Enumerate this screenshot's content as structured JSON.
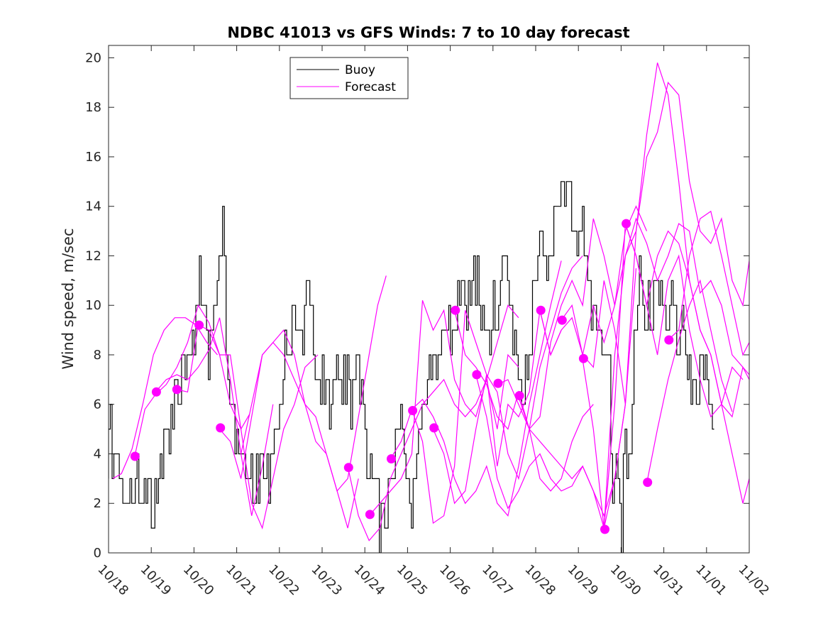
{
  "chart_data": {
    "type": "line",
    "title": "NDBC 41013 vs GFS Winds: 7 to 10 day forecast",
    "xlabel": "",
    "ylabel": "Wind speed, m/sec",
    "xlim": [
      0,
      15
    ],
    "ylim": [
      0,
      20.5
    ],
    "x_ticks": [
      0,
      1,
      2,
      3,
      4,
      5,
      6,
      7,
      8,
      9,
      10,
      11,
      12,
      13,
      14,
      15
    ],
    "x_tick_labels": [
      "10/18",
      "10/19",
      "10/20",
      "10/21",
      "10/22",
      "10/23",
      "10/24",
      "10/25",
      "10/26",
      "10/27",
      "10/28",
      "10/29",
      "10/30",
      "10/31",
      "11/01",
      "11/02"
    ],
    "y_ticks": [
      0,
      2,
      4,
      6,
      8,
      10,
      12,
      14,
      16,
      18,
      20
    ],
    "y_tick_labels": [
      "0",
      "2",
      "4",
      "6",
      "8",
      "10",
      "12",
      "14",
      "16",
      "18",
      "20"
    ],
    "legend": {
      "placement": "top-center",
      "entries": [
        {
          "label": "Buoy",
          "color": "#000000"
        },
        {
          "label": "Forecast",
          "color": "#ff00ff"
        }
      ]
    },
    "colors": {
      "buoy": "#000000",
      "forecast": "#ff00ff"
    },
    "buoy_anchors": [
      [
        0.0,
        3
      ],
      [
        0.05,
        5
      ],
      [
        0.15,
        4
      ],
      [
        0.3,
        3
      ],
      [
        0.55,
        2
      ],
      [
        0.7,
        3
      ],
      [
        0.8,
        2
      ],
      [
        0.85,
        1
      ],
      [
        0.95,
        3
      ],
      [
        0.9,
        2
      ],
      [
        1.05,
        1
      ],
      [
        1.2,
        3
      ],
      [
        1.3,
        4
      ],
      [
        1.45,
        5
      ],
      [
        1.55,
        6
      ],
      [
        1.7,
        7
      ],
      [
        1.85,
        8
      ],
      [
        2.0,
        9
      ],
      [
        2.1,
        10
      ],
      [
        2.2,
        11
      ],
      [
        2.35,
        8
      ],
      [
        2.45,
        9
      ],
      [
        2.6,
        12
      ],
      [
        2.72,
        14
      ],
      [
        2.8,
        9
      ],
      [
        2.92,
        6
      ],
      [
        3.0,
        5
      ],
      [
        3.15,
        4
      ],
      [
        3.3,
        3
      ],
      [
        3.5,
        3
      ],
      [
        3.6,
        4
      ],
      [
        3.75,
        3
      ],
      [
        3.9,
        4
      ],
      [
        4.05,
        6
      ],
      [
        4.2,
        8
      ],
      [
        4.35,
        9
      ],
      [
        4.55,
        9
      ],
      [
        4.7,
        10
      ],
      [
        4.8,
        9
      ],
      [
        4.95,
        6
      ],
      [
        5.1,
        7
      ],
      [
        5.2,
        6
      ],
      [
        5.3,
        8
      ],
      [
        5.45,
        6
      ],
      [
        5.6,
        7
      ],
      [
        5.75,
        6
      ],
      [
        5.85,
        8
      ],
      [
        5.95,
        7
      ],
      [
        6.05,
        5
      ],
      [
        6.2,
        3
      ],
      [
        6.3,
        2
      ],
      [
        6.4,
        1
      ],
      [
        6.5,
        2
      ],
      [
        6.65,
        3
      ],
      [
        6.8,
        5
      ],
      [
        6.9,
        6
      ],
      [
        7.0,
        3
      ],
      [
        7.1,
        2
      ],
      [
        7.2,
        3
      ],
      [
        7.3,
        5
      ],
      [
        7.4,
        6
      ],
      [
        7.55,
        7
      ],
      [
        7.7,
        8
      ],
      [
        7.9,
        9
      ],
      [
        8.1,
        9
      ],
      [
        8.3,
        10
      ],
      [
        8.45,
        10
      ],
      [
        8.6,
        11
      ],
      [
        8.75,
        10
      ],
      [
        8.95,
        9
      ],
      [
        9.1,
        10
      ],
      [
        9.25,
        11
      ],
      [
        9.4,
        12
      ],
      [
        9.5,
        9
      ],
      [
        9.6,
        7
      ],
      [
        9.75,
        6
      ],
      [
        9.9,
        9
      ],
      [
        10.05,
        11
      ],
      [
        10.2,
        13
      ],
      [
        10.35,
        12
      ],
      [
        10.5,
        14
      ],
      [
        10.65,
        15
      ],
      [
        10.8,
        14
      ],
      [
        10.95,
        13
      ],
      [
        11.1,
        14
      ],
      [
        11.2,
        12
      ],
      [
        11.35,
        10
      ],
      [
        11.5,
        9
      ],
      [
        11.6,
        9
      ],
      [
        11.75,
        8
      ],
      [
        11.85,
        2
      ],
      [
        11.95,
        4
      ],
      [
        12.05,
        1
      ],
      [
        12.15,
        5
      ],
      [
        12.25,
        3
      ],
      [
        12.35,
        9
      ],
      [
        12.5,
        11
      ],
      [
        12.65,
        10
      ],
      [
        12.75,
        10
      ],
      [
        12.85,
        11
      ],
      [
        12.95,
        10
      ],
      [
        13.1,
        9
      ],
      [
        13.2,
        12
      ],
      [
        13.35,
        8
      ],
      [
        13.45,
        9
      ],
      [
        13.6,
        7
      ],
      [
        13.75,
        6
      ],
      [
        13.9,
        8
      ],
      [
        14.0,
        7
      ],
      [
        14.1,
        6
      ],
      [
        14.2,
        5
      ]
    ],
    "forecast_series": [
      {
        "name": "Forecast 1",
        "x": [
          0.1,
          0.3,
          0.55,
          0.8,
          1.05,
          1.3,
          1.55,
          1.8,
          2.05,
          2.3,
          2.55
        ],
        "y": [
          3.0,
          3.2,
          4.2,
          6.0,
          8.0,
          9.0,
          9.5,
          9.5,
          9.2,
          8.5,
          8.0
        ]
      },
      {
        "name": "Forecast 2",
        "x": [
          0.6,
          0.85,
          1.1,
          1.35,
          1.6,
          1.85,
          2.1,
          2.35,
          2.6,
          2.85,
          3.1,
          3.3
        ],
        "y": [
          3.8,
          5.8,
          6.4,
          6.8,
          7.5,
          8.5,
          10.0,
          9.3,
          8.0,
          8.0,
          5.0,
          5.6
        ]
      },
      {
        "name": "Forecast 3",
        "x": [
          1.1,
          1.35,
          1.6,
          1.85,
          2.1,
          2.35,
          2.6,
          2.85,
          3.1,
          3.35,
          3.6,
          3.85
        ],
        "y": [
          6.5,
          7.0,
          7.2,
          7.0,
          7.5,
          8.2,
          9.5,
          7.0,
          4.0,
          1.5,
          3.5,
          6.0
        ]
      },
      {
        "name": "Forecast 4",
        "x": [
          1.6,
          1.85,
          2.1,
          2.35,
          2.6,
          2.85,
          3.1,
          3.35,
          3.6,
          3.85,
          4.1,
          4.35,
          4.6,
          4.9
        ],
        "y": [
          6.6,
          6.5,
          9.2,
          9.0,
          8.0,
          6.0,
          5.0,
          2.0,
          1.0,
          3.0,
          5.0,
          6.0,
          7.5,
          8.0
        ]
      },
      {
        "name": "Forecast 5",
        "x": [
          2.6,
          2.85,
          3.1,
          3.35,
          3.6,
          3.85,
          4.1,
          4.35,
          4.6,
          4.85,
          5.1,
          5.35,
          5.6,
          5.85
        ],
        "y": [
          5.0,
          4.5,
          3.0,
          5.5,
          8.0,
          8.5,
          9.0,
          8.0,
          6.0,
          5.5,
          4.0,
          2.5,
          1.0,
          3.0
        ]
      },
      {
        "name": "Forecast 6",
        "x": [
          3.1,
          3.35,
          3.6,
          3.85,
          4.1,
          4.35,
          4.6,
          4.85,
          5.1,
          5.35,
          5.6,
          5.85,
          6.1,
          6.3,
          6.5
        ],
        "y": [
          4.0,
          6.0,
          8.0,
          8.5,
          8.0,
          7.0,
          6.0,
          4.5,
          4.0,
          2.5,
          3.0,
          5.5,
          8.0,
          10.0,
          11.2
        ]
      },
      {
        "name": "Forecast 7",
        "x": [
          5.6,
          5.85,
          6.1,
          6.35,
          6.6,
          6.85,
          7.1,
          7.35,
          7.6,
          7.85,
          8.1,
          8.35,
          8.6,
          8.85,
          9.1,
          9.35,
          9.6
        ],
        "y": [
          3.5,
          1.5,
          0.5,
          1.0,
          3.0,
          4.0,
          5.0,
          6.0,
          6.5,
          7.0,
          6.0,
          5.5,
          6.0,
          7.0,
          8.5,
          10.0,
          9.5
        ]
      },
      {
        "name": "Forecast 8",
        "x": [
          6.1,
          6.35,
          6.6,
          6.85,
          7.1,
          7.35,
          7.6,
          7.85,
          8.1,
          8.35,
          8.6,
          8.85,
          9.1,
          9.35,
          9.6
        ],
        "y": [
          1.5,
          2.0,
          2.5,
          3.0,
          4.0,
          10.2,
          9.0,
          9.8,
          7.0,
          6.0,
          5.5,
          7.0,
          5.0,
          8.0,
          7.5
        ]
      },
      {
        "name": "Forecast 9",
        "x": [
          6.6,
          6.85,
          7.1,
          7.35,
          7.6,
          7.85,
          8.1,
          8.35,
          8.6,
          8.85,
          9.1,
          9.35,
          9.6,
          9.85,
          10.1,
          10.35,
          10.6
        ],
        "y": [
          3.8,
          4.5,
          5.8,
          6.2,
          5.5,
          4.5,
          3.0,
          2.0,
          2.5,
          3.5,
          2.0,
          1.5,
          3.5,
          6.0,
          8.0,
          10.0,
          11.8
        ]
      },
      {
        "name": "Forecast 10",
        "x": [
          7.1,
          7.35,
          7.6,
          7.85,
          8.1,
          8.35,
          8.6,
          8.85,
          9.1,
          9.35,
          9.6,
          9.85,
          10.1,
          10.35,
          10.6
        ],
        "y": [
          5.8,
          4.5,
          1.2,
          1.5,
          3.5,
          9.8,
          8.5,
          7.2,
          3.5,
          6.0,
          5.5,
          6.5,
          9.8,
          8.0,
          9.0
        ]
      },
      {
        "name": "Forecast 11",
        "x": [
          7.6,
          7.85,
          8.1,
          8.35,
          8.6,
          8.85,
          9.1,
          9.35,
          9.6,
          9.85,
          10.1,
          10.35,
          10.6,
          10.85,
          11.1
        ],
        "y": [
          5.0,
          4.0,
          2.0,
          2.5,
          5.0,
          7.2,
          6.5,
          4.0,
          3.0,
          5.0,
          7.5,
          9.0,
          10.5,
          11.5,
          12.0
        ]
      },
      {
        "name": "Forecast 12",
        "x": [
          8.1,
          8.35,
          8.6,
          8.85,
          9.1,
          9.35,
          9.6,
          9.85,
          10.1,
          10.35,
          10.6,
          10.85,
          11.1,
          11.35
        ],
        "y": [
          9.8,
          8.0,
          7.5,
          6.8,
          5.5,
          5.0,
          6.5,
          5.0,
          3.0,
          2.5,
          3.0,
          4.5,
          5.5,
          6.0
        ]
      },
      {
        "name": "Forecast 13",
        "x": [
          8.6,
          8.85,
          9.1,
          9.35,
          9.6,
          9.85,
          10.1,
          10.35,
          10.6,
          10.85,
          11.1,
          11.35,
          11.6,
          11.85,
          12.1
        ],
        "y": [
          7.2,
          5.5,
          3.0,
          1.8,
          2.5,
          3.5,
          4.0,
          3.0,
          2.5,
          2.7,
          3.5,
          2.5,
          1.5,
          3.0,
          6.0
        ]
      },
      {
        "name": "Forecast 14",
        "x": [
          9.1,
          9.35,
          9.6,
          9.85,
          10.1,
          10.35,
          10.6,
          10.85,
          11.1,
          11.35,
          11.6,
          11.85,
          12.1,
          12.35
        ],
        "y": [
          6.8,
          7.0,
          6.0,
          5.0,
          4.5,
          4.0,
          3.5,
          3.0,
          3.5,
          2.5,
          1.0,
          3.0,
          6.0,
          11.5
        ]
      },
      {
        "name": "Forecast 15",
        "x": [
          9.6,
          9.85,
          10.1,
          10.35,
          10.6,
          10.85,
          11.1,
          11.35,
          11.6,
          11.85,
          12.1,
          12.35,
          12.6
        ],
        "y": [
          6.3,
          5.0,
          5.5,
          8.5,
          10.0,
          11.0,
          10.0,
          13.5,
          12.0,
          10.0,
          13.0,
          14.0,
          13.0
        ]
      },
      {
        "name": "Forecast 16",
        "x": [
          10.1,
          10.35,
          10.6,
          10.85,
          11.1,
          11.35,
          11.6,
          11.85,
          12.1,
          12.35,
          12.6,
          12.85,
          13.1,
          13.35,
          13.6,
          13.85,
          14.1,
          14.35,
          14.6,
          14.85,
          15.0
        ],
        "y": [
          9.8,
          8.0,
          9.0,
          9.5,
          8.0,
          10.0,
          8.5,
          10.0,
          12.0,
          13.5,
          12.5,
          11.0,
          12.0,
          13.3,
          13.0,
          10.5,
          11.0,
          10.0,
          8.0,
          7.5,
          7.0
        ]
      },
      {
        "name": "Forecast 17",
        "x": [
          10.6,
          10.85,
          11.1,
          11.35,
          11.6,
          11.85,
          12.1,
          12.35,
          12.6,
          12.85,
          13.1,
          13.35,
          13.6,
          13.85,
          14.1,
          14.35,
          14.6,
          14.85,
          15.0
        ],
        "y": [
          9.4,
          10.0,
          8.0,
          7.5,
          11.0,
          9.0,
          6.0,
          13.0,
          16.0,
          17.0,
          19.0,
          18.5,
          15.0,
          13.0,
          12.5,
          13.5,
          11.0,
          10.0,
          11.8
        ]
      },
      {
        "name": "Forecast 18",
        "x": [
          11.1,
          11.35,
          11.6,
          11.85,
          12.1,
          12.35,
          12.6,
          12.85,
          13.1,
          13.35,
          13.6,
          13.85,
          14.1,
          14.35,
          14.6,
          14.85,
          15.0
        ],
        "y": [
          7.8,
          5.0,
          1.0,
          8.0,
          12.0,
          13.0,
          16.9,
          19.8,
          18.5,
          15.0,
          11.0,
          9.0,
          8.0,
          6.0,
          5.5,
          7.5,
          7.2
        ]
      },
      {
        "name": "Forecast 19",
        "x": [
          11.6,
          11.85,
          12.1,
          12.35,
          12.6,
          12.85,
          13.1,
          13.35,
          13.6,
          13.85,
          14.1,
          14.35,
          14.6,
          14.85
        ],
        "y": [
          1.0,
          6.0,
          13.3,
          12.0,
          10.0,
          8.0,
          11.0,
          12.0,
          9.0,
          7.0,
          5.5,
          6.0,
          7.5,
          7.0
        ]
      },
      {
        "name": "Forecast 20",
        "x": [
          12.1,
          12.35,
          12.6,
          12.85,
          13.1,
          13.35,
          13.6,
          13.85,
          14.1,
          14.35,
          14.6,
          14.85,
          15.0
        ],
        "y": [
          13.3,
          12.0,
          10.0,
          12.0,
          13.0,
          12.5,
          11.0,
          9.0,
          8.0,
          6.0,
          4.0,
          2.0,
          3.0
        ]
      },
      {
        "name": "Forecast 21",
        "x": [
          12.6,
          12.85,
          13.1,
          13.35,
          13.6,
          13.85,
          14.1,
          14.35,
          14.6
        ],
        "y": [
          2.8,
          5.0,
          7.0,
          8.6,
          10.0,
          11.0,
          9.0,
          7.0,
          5.7
        ]
      },
      {
        "name": "Forecast 22",
        "x": [
          13.1,
          13.35,
          13.6,
          13.85,
          14.1,
          14.35,
          14.6,
          14.85,
          15.0
        ],
        "y": [
          8.6,
          9.0,
          12.0,
          13.5,
          13.8,
          12.0,
          10.0,
          8.0,
          8.5
        ]
      }
    ],
    "forecast_start_points": {
      "x": [
        0.62,
        1.12,
        1.6,
        2.12,
        2.62,
        5.62,
        6.12,
        6.62,
        7.12,
        7.62,
        8.12,
        8.62,
        9.12,
        9.62,
        10.12,
        10.62,
        11.12,
        11.62,
        12.12,
        12.62,
        13.12
      ],
      "y": [
        3.9,
        6.5,
        6.6,
        9.2,
        5.05,
        3.45,
        1.55,
        3.8,
        5.75,
        5.05,
        9.8,
        7.2,
        6.85,
        6.35,
        9.8,
        9.4,
        7.85,
        0.95,
        13.3,
        2.85,
        8.6
      ]
    }
  }
}
